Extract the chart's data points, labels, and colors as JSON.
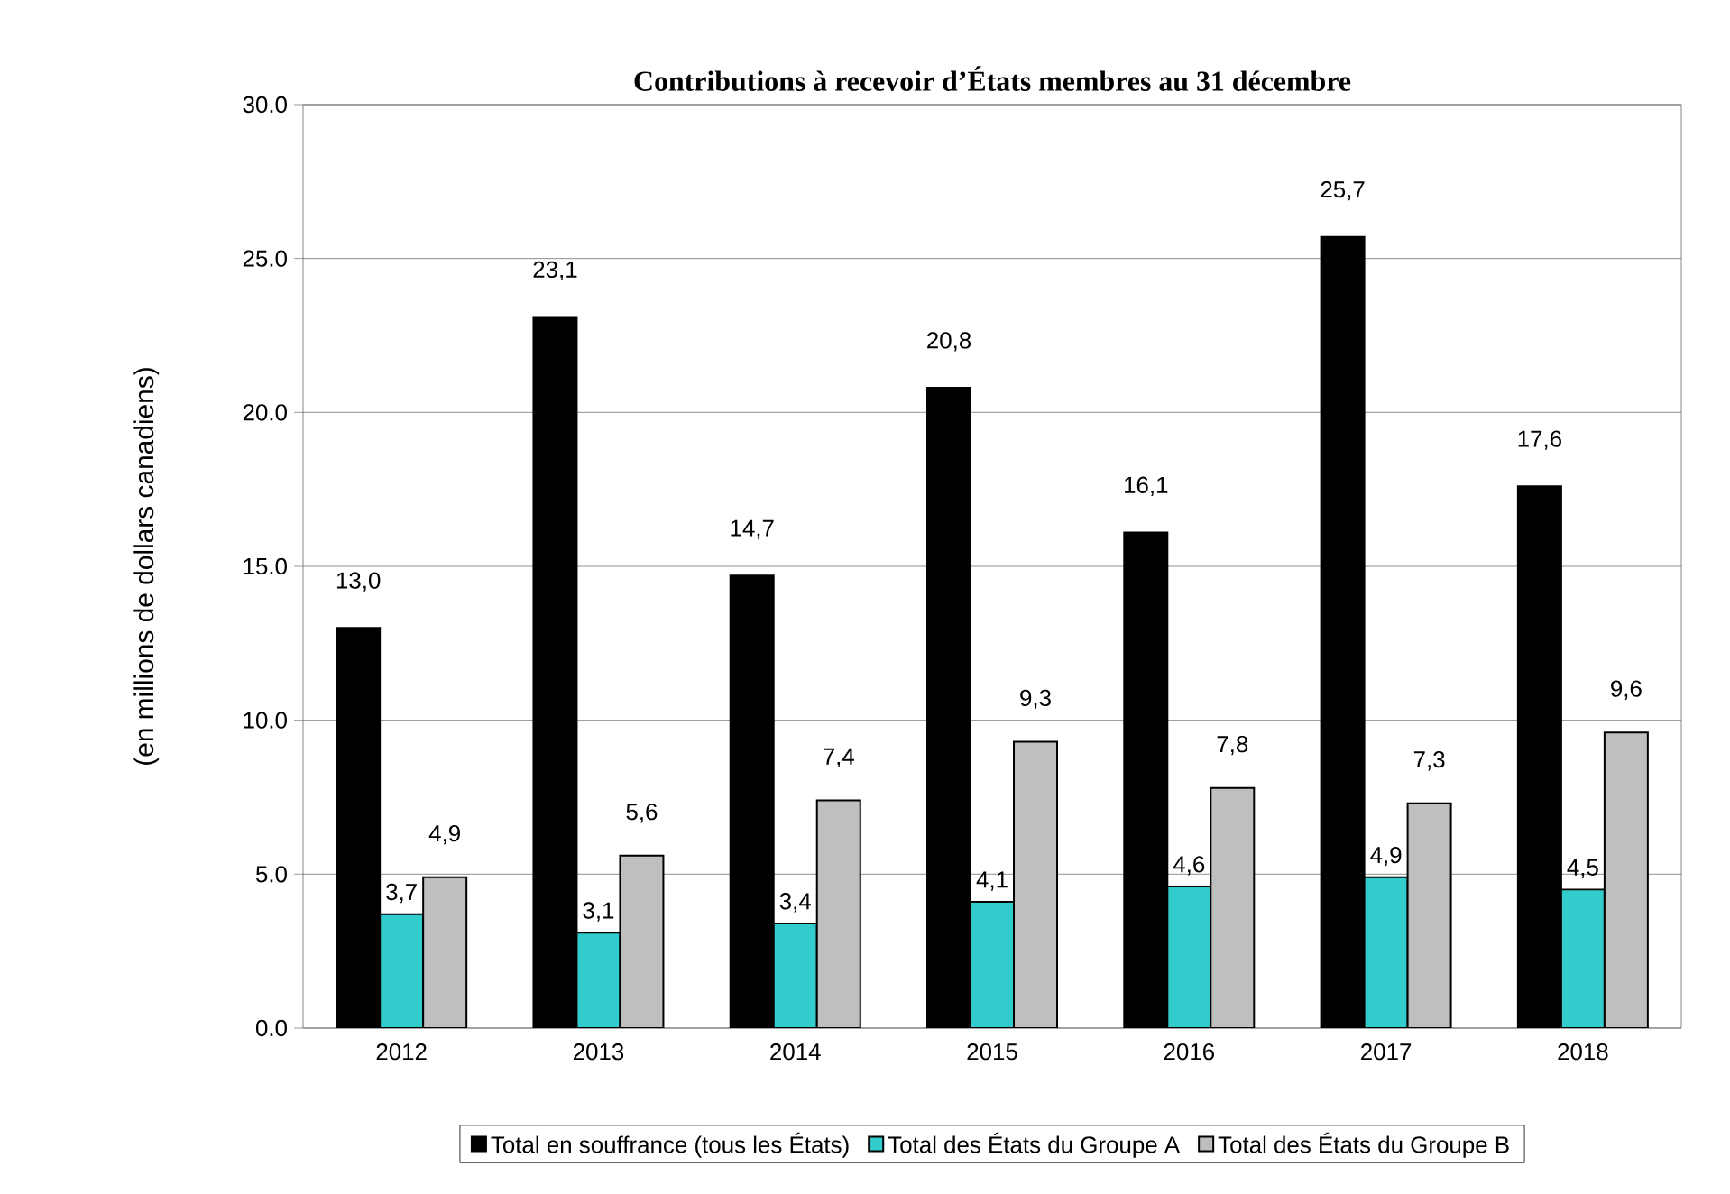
{
  "chart_data": {
    "type": "bar",
    "title": "Contributions à recevoir d’États membres au 31 décembre",
    "ylabel": "(en  millions de dollars canadiens)",
    "categories": [
      "2012",
      "2013",
      "2014",
      "2015",
      "2016",
      "2017",
      "2018"
    ],
    "series": [
      {
        "name": "Total en souffrance (tous les États)",
        "color": "#000000",
        "values": [
          13.0,
          23.1,
          14.7,
          20.8,
          16.1,
          25.7,
          17.6
        ],
        "value_labels": [
          "13,0",
          "23,1",
          "14,7",
          "20,8",
          "16,1",
          "25,7",
          "17,6"
        ]
      },
      {
        "name": "Total des États du Groupe A",
        "color": "#33cccc",
        "values": [
          3.7,
          3.1,
          3.4,
          4.1,
          4.6,
          4.9,
          4.5
        ],
        "value_labels": [
          "3,7",
          "3,1",
          "3,4",
          "4,1",
          "4,6",
          "4,9",
          "4,5"
        ]
      },
      {
        "name": "Total des États du Groupe B",
        "color": "#bfbfbf",
        "values": [
          4.9,
          5.6,
          7.4,
          9.3,
          7.8,
          7.3,
          9.6
        ],
        "value_labels": [
          "4,9",
          "5,6",
          "7,4",
          "9,3",
          "7,8",
          "7,3",
          "9,6"
        ]
      }
    ],
    "ylim": [
      0,
      30
    ],
    "yticks": [
      {
        "value": 0,
        "label": "0.0"
      },
      {
        "value": 5,
        "label": "5.0"
      },
      {
        "value": 10,
        "label": "10.0"
      },
      {
        "value": 15,
        "label": "15.0"
      },
      {
        "value": 20,
        "label": "20.0"
      },
      {
        "value": 25,
        "label": "25.0"
      },
      {
        "value": 30,
        "label": "30.0"
      }
    ],
    "grid": "y",
    "legend": "bottom"
  }
}
